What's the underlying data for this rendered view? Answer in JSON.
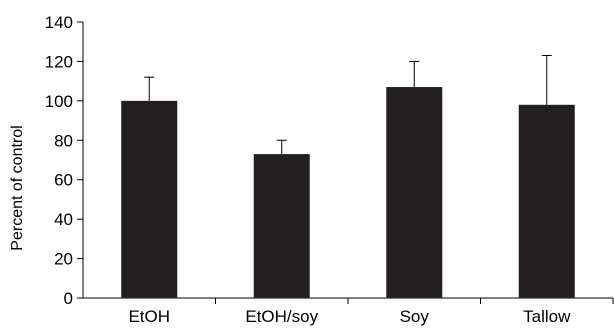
{
  "chart_data": {
    "type": "bar",
    "title": "",
    "xlabel": "",
    "ylabel": "Percent of control",
    "categories": [
      "EtOH",
      "EtOH/soy",
      "Soy",
      "Tallow"
    ],
    "values": [
      100,
      73,
      107,
      98
    ],
    "errors": [
      12,
      7,
      13,
      25
    ],
    "ylim": [
      0,
      140
    ],
    "yticks": [
      "0",
      "20",
      "40",
      "60",
      "80",
      "100",
      "120",
      "140"
    ],
    "grid": false,
    "bar_color": "#231f20"
  }
}
